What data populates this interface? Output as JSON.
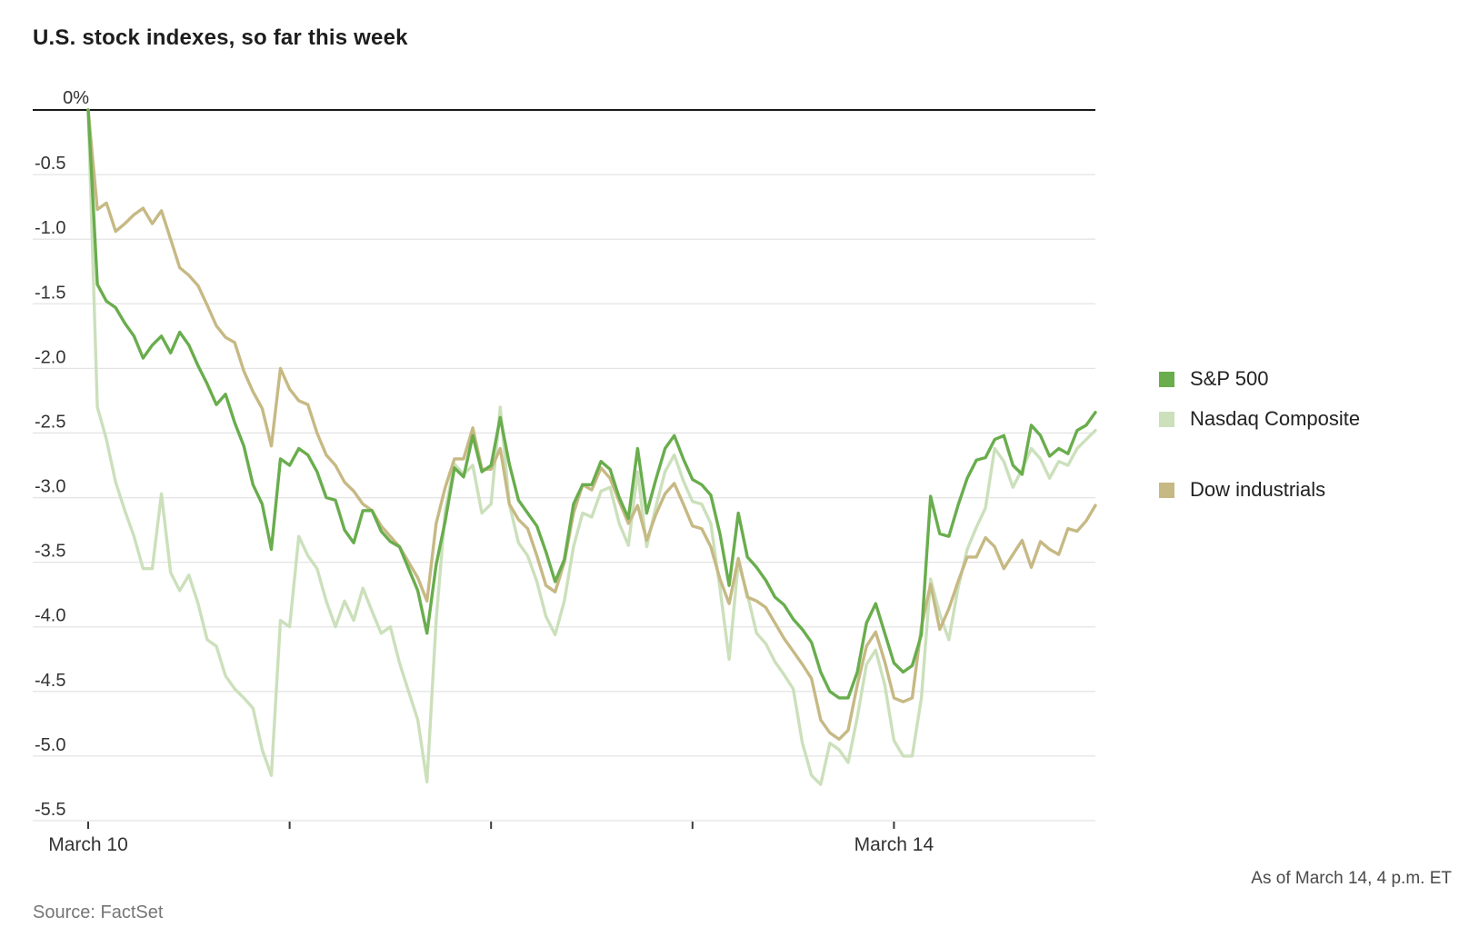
{
  "title": "U.S. stock indexes, so far this week",
  "footer": {
    "as_of": "As of March 14, 4 p.m. ET",
    "source": "Source: FactSet"
  },
  "legend": [
    {
      "label": "S&P 500",
      "color": "#69ad4d"
    },
    {
      "label": "Nasdaq Composite",
      "color": "#cbe0bb"
    },
    {
      "label": "Dow industrials",
      "color": "#c6b984"
    }
  ],
  "colors": {
    "grid": "#e4e4e4",
    "zero_line": "#1a1a1a",
    "tick": "#3a3a3a",
    "axis_text": "#333333"
  },
  "chart_data": {
    "type": "line",
    "title": "U.S. stock indexes, so far this week",
    "ylim": [
      -5.5,
      0
    ],
    "grid": true,
    "legend_position": "right",
    "y_axis": {
      "tick_values": [
        0,
        -0.5,
        -1.0,
        -1.5,
        -2.0,
        -2.5,
        -3.0,
        -3.5,
        -4.0,
        -4.5,
        -5.0,
        -5.5
      ],
      "tick_labels": [
        "0%",
        "-0.5",
        "-1.0",
        "-1.5",
        "-2.0",
        "-2.5",
        "-3.0",
        "-3.5",
        "-4.0",
        "-4.5",
        "-5.0",
        "-5.5"
      ]
    },
    "x_axis": {
      "num_days": 5,
      "labels": [
        {
          "text": "March 10",
          "day": 0
        },
        {
          "text": "March 14",
          "day": 4
        }
      ]
    },
    "series": [
      {
        "name": "S&P 500",
        "color": "#69ad4d",
        "values": [
          0,
          -1.35,
          -1.48,
          -1.53,
          -1.65,
          -1.75,
          -1.92,
          -1.82,
          -1.75,
          -1.88,
          -1.72,
          -1.82,
          -1.98,
          -2.12,
          -2.28,
          -2.2,
          -2.42,
          -2.6,
          -2.9,
          -3.05,
          -3.4,
          -2.7,
          -2.75,
          -2.62,
          -2.67,
          -2.8,
          -3.0,
          -3.02,
          -3.25,
          -3.35,
          -3.1,
          -3.1,
          -3.26,
          -3.34,
          -3.38,
          -3.55,
          -3.72,
          -4.05,
          -3.52,
          -3.18,
          -2.77,
          -2.84,
          -2.52,
          -2.8,
          -2.75,
          -2.38,
          -2.74,
          -3.02,
          -3.12,
          -3.22,
          -3.42,
          -3.65,
          -3.48,
          -3.05,
          -2.9,
          -2.9,
          -2.72,
          -2.78,
          -3.0,
          -3.16,
          -2.62,
          -3.12,
          -2.86,
          -2.62,
          -2.52,
          -2.7,
          -2.86,
          -2.9,
          -2.98,
          -3.28,
          -3.68,
          -3.12,
          -3.46,
          -3.54,
          -3.64,
          -3.77,
          -3.83,
          -3.94,
          -4.02,
          -4.12,
          -4.35,
          -4.5,
          -4.55,
          -4.55,
          -4.35,
          -3.97,
          -3.82,
          -4.05,
          -4.28,
          -4.35,
          -4.3,
          -4.06,
          -2.99,
          -3.28,
          -3.3,
          -3.06,
          -2.85,
          -2.71,
          -2.69,
          -2.55,
          -2.52,
          -2.75,
          -2.82,
          -2.44,
          -2.52,
          -2.68,
          -2.62,
          -2.66,
          -2.48,
          -2.44,
          -2.34
        ]
      },
      {
        "name": "Nasdaq Composite",
        "color": "#cbe0bb",
        "values": [
          0,
          -2.3,
          -2.55,
          -2.88,
          -3.1,
          -3.3,
          -3.55,
          -3.55,
          -2.97,
          -3.58,
          -3.72,
          -3.6,
          -3.82,
          -4.1,
          -4.15,
          -4.38,
          -4.48,
          -4.55,
          -4.63,
          -4.95,
          -5.15,
          -3.95,
          -4.0,
          -3.3,
          -3.45,
          -3.55,
          -3.8,
          -4.0,
          -3.8,
          -3.95,
          -3.7,
          -3.88,
          -4.05,
          -4.0,
          -4.28,
          -4.5,
          -4.72,
          -5.2,
          -3.95,
          -3.1,
          -2.74,
          -2.82,
          -2.75,
          -3.12,
          -3.05,
          -2.3,
          -3.05,
          -3.35,
          -3.45,
          -3.65,
          -3.92,
          -4.06,
          -3.8,
          -3.38,
          -3.12,
          -3.15,
          -2.95,
          -2.92,
          -3.2,
          -3.37,
          -2.8,
          -3.38,
          -3.07,
          -2.8,
          -2.67,
          -2.87,
          -3.03,
          -3.05,
          -3.2,
          -3.7,
          -4.25,
          -3.5,
          -3.75,
          -4.05,
          -4.13,
          -4.27,
          -4.37,
          -4.48,
          -4.9,
          -5.15,
          -5.22,
          -4.9,
          -4.95,
          -5.05,
          -4.7,
          -4.29,
          -4.18,
          -4.45,
          -4.88,
          -5.0,
          -5.0,
          -4.55,
          -3.63,
          -3.9,
          -4.1,
          -3.7,
          -3.4,
          -3.23,
          -3.08,
          -2.62,
          -2.72,
          -2.92,
          -2.78,
          -2.62,
          -2.7,
          -2.85,
          -2.72,
          -2.75,
          -2.62,
          -2.55,
          -2.48
        ]
      },
      {
        "name": "Dow industrials",
        "color": "#c6b984",
        "values": [
          0,
          -0.77,
          -0.72,
          -0.94,
          -0.88,
          -0.81,
          -0.76,
          -0.88,
          -0.78,
          -1.0,
          -1.22,
          -1.28,
          -1.36,
          -1.51,
          -1.67,
          -1.76,
          -1.8,
          -2.02,
          -2.18,
          -2.31,
          -2.6,
          -2.0,
          -2.16,
          -2.25,
          -2.28,
          -2.5,
          -2.67,
          -2.75,
          -2.88,
          -2.95,
          -3.05,
          -3.1,
          -3.22,
          -3.3,
          -3.38,
          -3.5,
          -3.62,
          -3.8,
          -3.2,
          -2.92,
          -2.7,
          -2.7,
          -2.46,
          -2.78,
          -2.78,
          -2.62,
          -3.05,
          -3.17,
          -3.24,
          -3.45,
          -3.68,
          -3.73,
          -3.5,
          -3.12,
          -2.9,
          -2.94,
          -2.77,
          -2.85,
          -3.03,
          -3.2,
          -3.06,
          -3.33,
          -3.13,
          -2.97,
          -2.89,
          -3.05,
          -3.22,
          -3.24,
          -3.38,
          -3.63,
          -3.82,
          -3.47,
          -3.77,
          -3.8,
          -3.85,
          -3.97,
          -4.09,
          -4.19,
          -4.29,
          -4.4,
          -4.72,
          -4.82,
          -4.87,
          -4.8,
          -4.45,
          -4.15,
          -4.04,
          -4.27,
          -4.55,
          -4.58,
          -4.55,
          -4.0,
          -3.67,
          -4.02,
          -3.86,
          -3.65,
          -3.46,
          -3.46,
          -3.31,
          -3.38,
          -3.55,
          -3.44,
          -3.33,
          -3.54,
          -3.34,
          -3.4,
          -3.44,
          -3.24,
          -3.26,
          -3.18,
          -3.06
        ]
      }
    ]
  }
}
